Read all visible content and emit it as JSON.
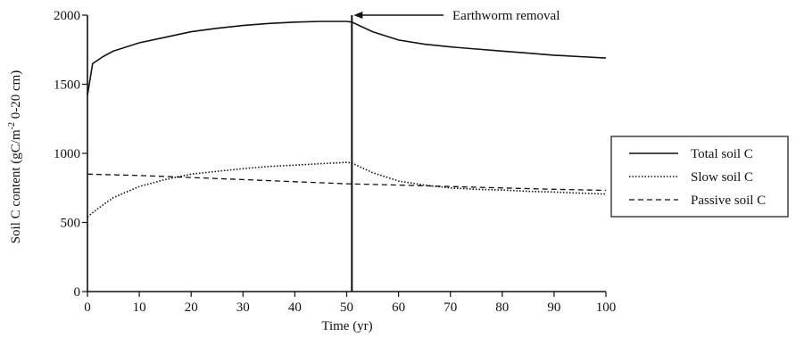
{
  "chart_data": {
    "type": "line",
    "xlabel": "Time (yr)",
    "ylabel": "Soil C content (gC/m-2 0-20 cm)",
    "ylabel_parts": {
      "pre": "Soil C content (gC/m",
      "sup": "-2",
      "post": " 0-20 cm)"
    },
    "xlim": [
      0,
      100
    ],
    "ylim": [
      0,
      2000
    ],
    "x_ticks": [
      0,
      10,
      20,
      30,
      40,
      50,
      60,
      70,
      80,
      90,
      100
    ],
    "y_ticks": [
      0,
      500,
      1000,
      1500,
      2000
    ],
    "grid": false,
    "legend_position": "right",
    "annotation": {
      "text": "Earthworm removal",
      "x": 51
    },
    "series": [
      {
        "name": "Total soil C",
        "style": "solid",
        "points": [
          [
            0,
            1420
          ],
          [
            1,
            1650
          ],
          [
            3,
            1700
          ],
          [
            5,
            1740
          ],
          [
            10,
            1800
          ],
          [
            15,
            1840
          ],
          [
            20,
            1880
          ],
          [
            25,
            1905
          ],
          [
            30,
            1925
          ],
          [
            35,
            1940
          ],
          [
            40,
            1950
          ],
          [
            45,
            1955
          ],
          [
            50,
            1955
          ],
          [
            51,
            1950
          ],
          [
            55,
            1880
          ],
          [
            60,
            1820
          ],
          [
            65,
            1790
          ],
          [
            70,
            1770
          ],
          [
            75,
            1755
          ],
          [
            80,
            1740
          ],
          [
            85,
            1725
          ],
          [
            90,
            1710
          ],
          [
            95,
            1700
          ],
          [
            100,
            1690
          ]
        ]
      },
      {
        "name": "Slow soil C",
        "style": "dotted",
        "points": [
          [
            0,
            540
          ],
          [
            2,
            600
          ],
          [
            5,
            680
          ],
          [
            10,
            760
          ],
          [
            15,
            810
          ],
          [
            20,
            850
          ],
          [
            25,
            870
          ],
          [
            30,
            890
          ],
          [
            35,
            905
          ],
          [
            40,
            915
          ],
          [
            45,
            925
          ],
          [
            50,
            935
          ],
          [
            51,
            930
          ],
          [
            55,
            860
          ],
          [
            60,
            800
          ],
          [
            65,
            770
          ],
          [
            70,
            750
          ],
          [
            75,
            740
          ],
          [
            80,
            735
          ],
          [
            85,
            725
          ],
          [
            90,
            720
          ],
          [
            95,
            712
          ],
          [
            100,
            705
          ]
        ]
      },
      {
        "name": "Passive soil C",
        "style": "dashed",
        "points": [
          [
            0,
            850
          ],
          [
            10,
            840
          ],
          [
            20,
            825
          ],
          [
            30,
            810
          ],
          [
            40,
            795
          ],
          [
            50,
            780
          ],
          [
            60,
            770
          ],
          [
            70,
            760
          ],
          [
            80,
            750
          ],
          [
            90,
            740
          ],
          [
            100,
            732
          ]
        ]
      }
    ]
  }
}
